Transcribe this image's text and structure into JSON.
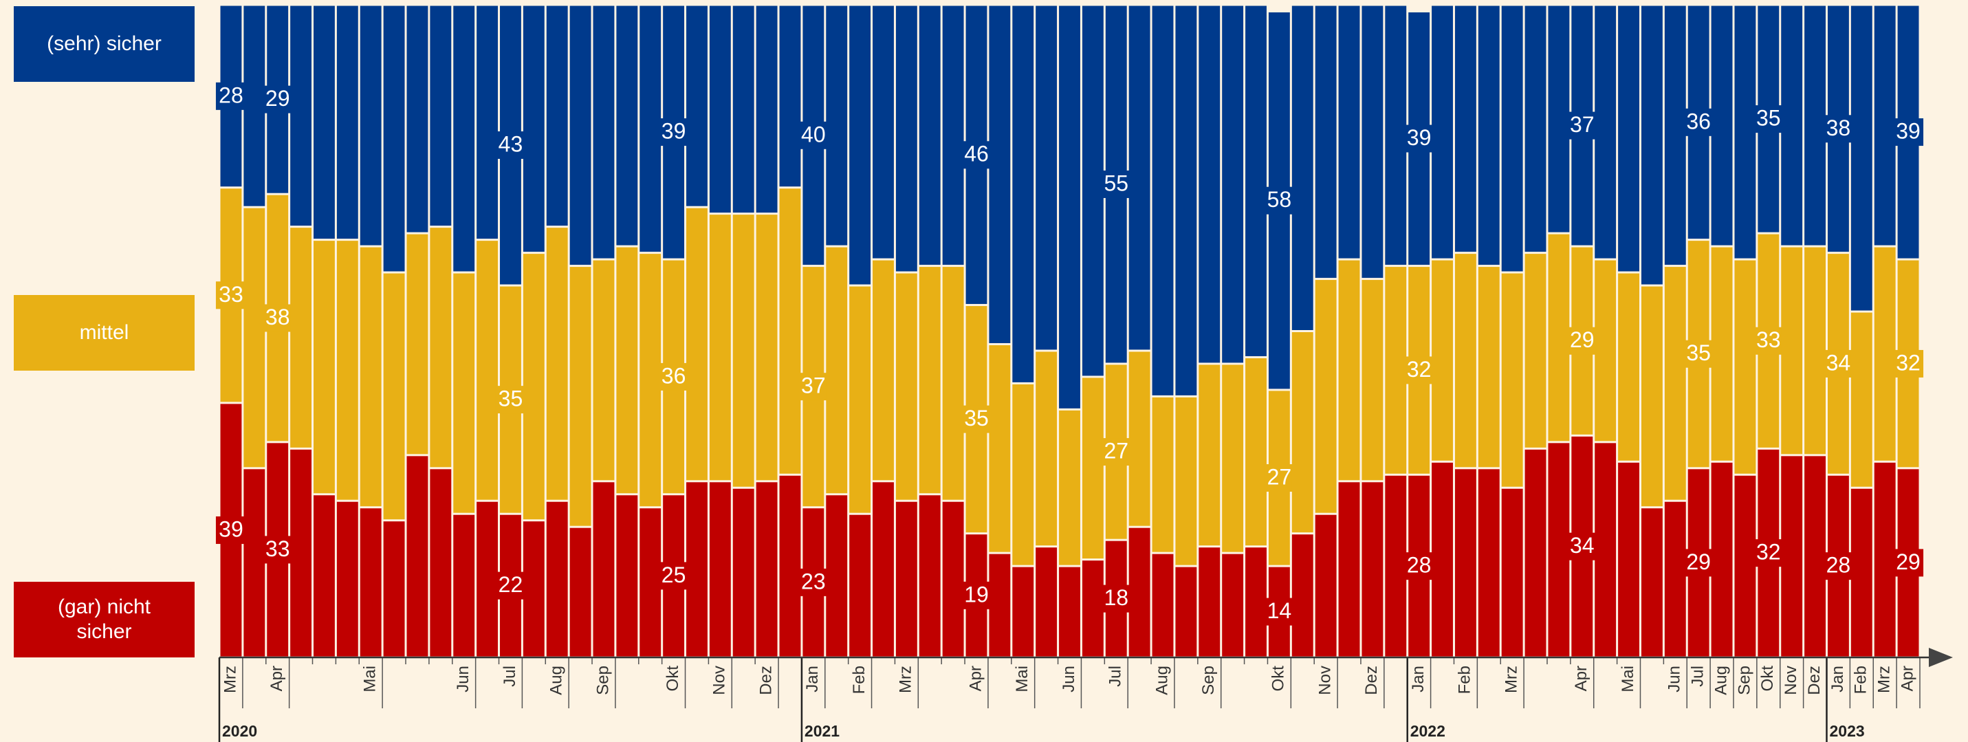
{
  "chart_data": {
    "type": "stacked_bar",
    "ylim": [
      0,
      100
    ],
    "categories": [
      "Mrz",
      null,
      "Apr",
      null,
      null,
      null,
      "Mai",
      null,
      null,
      null,
      "Jun",
      null,
      "Jul",
      null,
      "Aug",
      null,
      "Sep",
      null,
      null,
      "Okt",
      null,
      "Nov",
      null,
      "Dez",
      null,
      "Jan",
      null,
      "Feb",
      null,
      "Mrz",
      null,
      null,
      "Apr",
      null,
      "Mai",
      null,
      "Jun",
      null,
      "Jul",
      null,
      "Aug",
      null,
      "Sep",
      null,
      null,
      "Okt",
      null,
      "Nov",
      null,
      "Dez",
      null,
      "Jan",
      null,
      "Feb",
      null,
      "Mrz",
      null,
      null,
      "Apr",
      null,
      "Mai",
      null,
      "Jun",
      "Jul",
      "Aug",
      "Sep",
      "Okt",
      "Nov",
      "Dez",
      "Jan",
      "Feb",
      "Mrz",
      "Apr"
    ],
    "years": [
      {
        "label": "2020",
        "start": 0
      },
      {
        "label": "2021",
        "start": 25
      },
      {
        "label": "2022",
        "start": 51
      },
      {
        "label": "2023",
        "start": 69
      }
    ],
    "series": [
      {
        "name": "(gar) nicht sicher",
        "color": "#c00000",
        "values": [
          39,
          29,
          33,
          32,
          25,
          24,
          23,
          21,
          31,
          29,
          22,
          24,
          22,
          21,
          24,
          20,
          27,
          25,
          23,
          25,
          27,
          27,
          26,
          27,
          28,
          23,
          25,
          22,
          27,
          24,
          25,
          24,
          19,
          16,
          14,
          17,
          14,
          15,
          18,
          20,
          16,
          14,
          17,
          16,
          17,
          14,
          19,
          22,
          27,
          27,
          28,
          28,
          30,
          29,
          29,
          26,
          32,
          33,
          34,
          33,
          30,
          23,
          24,
          29,
          30,
          28,
          32,
          31,
          31,
          28,
          26,
          30,
          29
        ],
        "value_labels": [
          "39",
          null,
          "33",
          null,
          null,
          null,
          null,
          null,
          null,
          null,
          null,
          null,
          "22",
          null,
          null,
          null,
          null,
          null,
          null,
          "25",
          null,
          null,
          null,
          null,
          null,
          "23",
          null,
          null,
          null,
          null,
          null,
          null,
          "19",
          null,
          null,
          null,
          null,
          null,
          "18",
          null,
          null,
          null,
          null,
          null,
          null,
          "14",
          null,
          null,
          null,
          null,
          null,
          "28",
          null,
          null,
          null,
          null,
          null,
          null,
          "34",
          null,
          null,
          null,
          null,
          "29",
          null,
          null,
          "32",
          null,
          null,
          "28",
          null,
          null,
          "29"
        ]
      },
      {
        "name": "mittel",
        "color": "#e8b015",
        "values": [
          33,
          40,
          38,
          34,
          39,
          40,
          40,
          38,
          34,
          37,
          37,
          40,
          35,
          41,
          42,
          40,
          34,
          38,
          39,
          36,
          42,
          41,
          42,
          41,
          44,
          37,
          38,
          35,
          34,
          35,
          35,
          36,
          35,
          32,
          28,
          30,
          24,
          28,
          27,
          27,
          24,
          26,
          28,
          29,
          29,
          27,
          31,
          36,
          34,
          31,
          32,
          32,
          31,
          33,
          31,
          33,
          30,
          32,
          29,
          28,
          29,
          34,
          36,
          35,
          33,
          33,
          33,
          32,
          32,
          34,
          27,
          33,
          32
        ],
        "value_labels": [
          "33",
          null,
          "38",
          null,
          null,
          null,
          null,
          null,
          null,
          null,
          null,
          null,
          "35",
          null,
          null,
          null,
          null,
          null,
          null,
          "36",
          null,
          null,
          null,
          null,
          null,
          "37",
          null,
          null,
          null,
          null,
          null,
          null,
          "35",
          null,
          null,
          null,
          null,
          null,
          "27",
          null,
          null,
          null,
          null,
          null,
          null,
          "27",
          null,
          null,
          null,
          null,
          null,
          "32",
          null,
          null,
          null,
          null,
          null,
          null,
          "29",
          null,
          null,
          null,
          null,
          "35",
          null,
          null,
          "33",
          null,
          null,
          "34",
          null,
          null,
          "32"
        ]
      },
      {
        "name": "(sehr) sicher",
        "color": "#003a8c",
        "values": [
          28,
          31,
          29,
          34,
          36,
          36,
          37,
          41,
          35,
          34,
          41,
          36,
          43,
          38,
          34,
          40,
          39,
          37,
          38,
          39,
          31,
          32,
          32,
          32,
          28,
          40,
          37,
          43,
          39,
          41,
          40,
          40,
          46,
          52,
          58,
          53,
          62,
          57,
          55,
          53,
          60,
          60,
          55,
          55,
          54,
          58,
          50,
          42,
          39,
          42,
          40,
          39,
          39,
          38,
          40,
          41,
          38,
          35,
          37,
          39,
          41,
          43,
          40,
          36,
          37,
          39,
          35,
          37,
          37,
          38,
          47,
          37,
          39
        ],
        "value_labels": [
          "28",
          null,
          "29",
          null,
          null,
          null,
          null,
          null,
          null,
          null,
          null,
          null,
          "43",
          null,
          null,
          null,
          null,
          null,
          null,
          "39",
          null,
          null,
          null,
          null,
          null,
          "40",
          null,
          null,
          null,
          null,
          null,
          null,
          "46",
          null,
          null,
          null,
          null,
          null,
          "55",
          null,
          null,
          null,
          null,
          null,
          null,
          "58",
          null,
          null,
          null,
          null,
          null,
          "39",
          null,
          null,
          null,
          null,
          null,
          null,
          "37",
          null,
          null,
          null,
          null,
          "36",
          null,
          null,
          "35",
          null,
          null,
          "38",
          null,
          null,
          "39"
        ]
      }
    ]
  }
}
